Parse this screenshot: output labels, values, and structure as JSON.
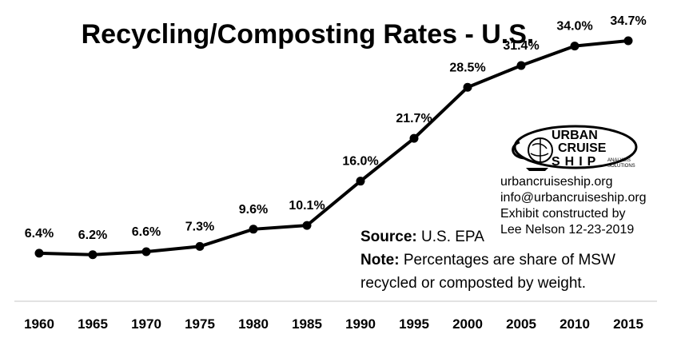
{
  "chart_data": {
    "type": "line",
    "title": "Recycling/Composting Rates - U.S.",
    "xlabel": "",
    "ylabel": "",
    "categories": [
      "1960",
      "1965",
      "1970",
      "1975",
      "1980",
      "1985",
      "1990",
      "1995",
      "2000",
      "2005",
      "2010",
      "2015"
    ],
    "series": [
      {
        "values": [
          6.4,
          6.2,
          6.6,
          7.3,
          9.6,
          10.1,
          16.0,
          21.7,
          28.5,
          31.4,
          34.0,
          34.7
        ],
        "labels": [
          "6.4%",
          "6.2%",
          "6.6%",
          "7.3%",
          "9.6%",
          "10.1%",
          "16.0%",
          "21.7%",
          "28.5%",
          "31.4%",
          "34.0%",
          "34.7%"
        ]
      }
    ],
    "ylim": [
      0,
      38
    ],
    "grid": false,
    "legend": "none",
    "line_color": "#000000",
    "axis_color": "#d9d9d9"
  },
  "source": {
    "label": "Source:",
    "text": " U.S. EPA"
  },
  "note": {
    "label": "Note:",
    "text_line1": " Percentages are share of MSW",
    "text_line2": "recycled or composted by weight."
  },
  "credits": {
    "website": "urbancruiseship.org",
    "email": "info@urbancruiseship.org",
    "line3": "Exhibit constructed by",
    "line4": "Lee Nelson 12-23-2019"
  },
  "logo": {
    "line1": "URBAN",
    "line2": "CRUISE",
    "line3": "SHIP",
    "tagline1": "ANALYSIS",
    "tagline2": "SOLUTIONS",
    "icon": "globe-ship-logo-icon"
  }
}
